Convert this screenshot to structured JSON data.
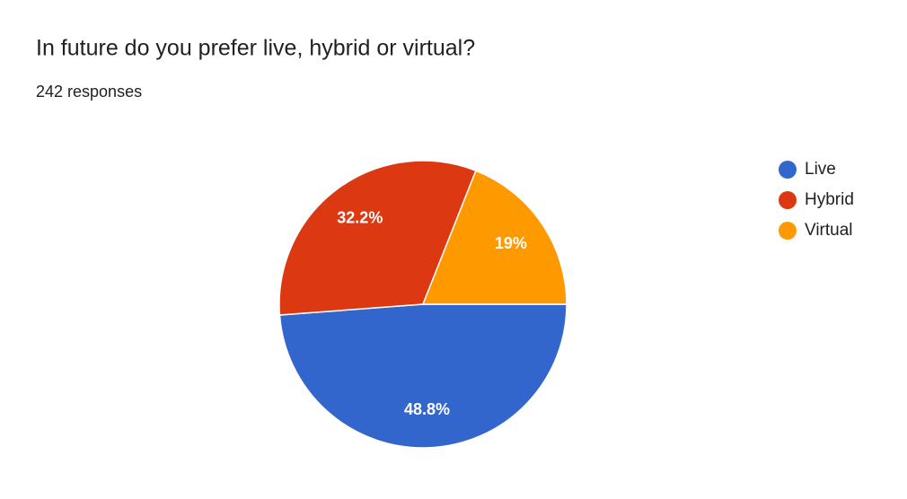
{
  "chart_data": {
    "type": "pie",
    "title": "In future do you prefer live, hybrid or virtual?",
    "subtitle": "242 responses",
    "categories": [
      "Live",
      "Hybrid",
      "Virtual"
    ],
    "values": [
      48.8,
      32.2,
      19
    ],
    "value_labels": [
      "48.8%",
      "32.2%",
      "19%"
    ],
    "colors": [
      "#3366cc",
      "#dc3912",
      "#ff9900"
    ],
    "legend": "right"
  }
}
